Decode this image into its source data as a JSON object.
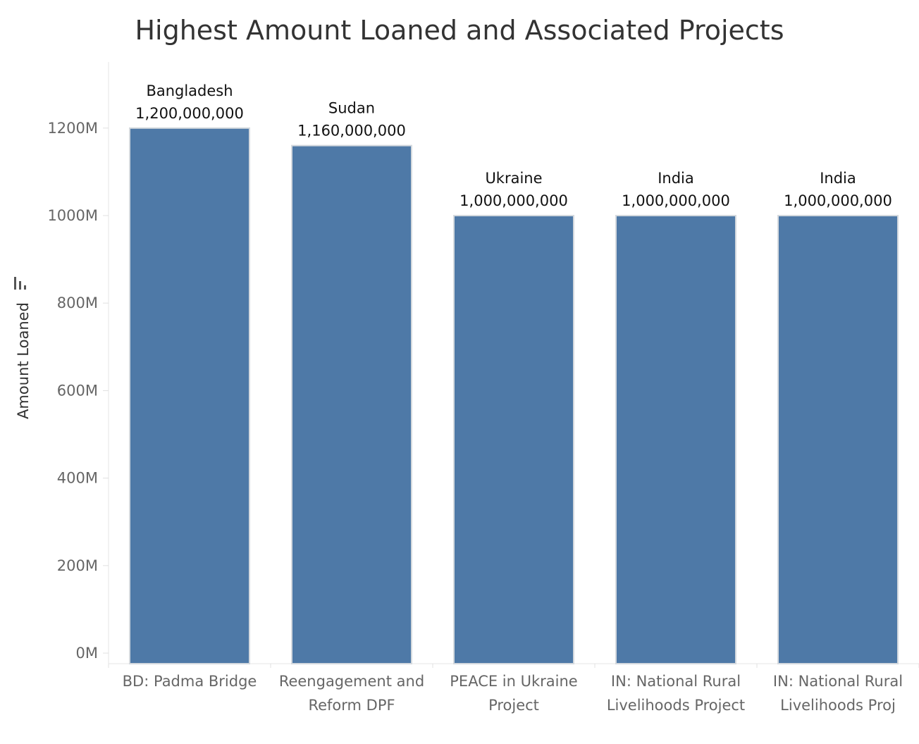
{
  "chart_data": {
    "type": "bar",
    "title": "Highest Amount Loaned and Associated Projects",
    "xlabel": "",
    "ylabel": "Amount Loaned",
    "ylim": [
      0,
      1330000000
    ],
    "yticks": [
      0,
      200000000,
      400000000,
      600000000,
      800000000,
      1000000000,
      1200000000
    ],
    "ytick_labels": [
      "0M",
      "200M",
      "400M",
      "600M",
      "800M",
      "1000M",
      "1200M"
    ],
    "grid": false,
    "legend": "none",
    "bar_color": "#4e79a7",
    "categories": [
      [
        "BD: Padma Bridge"
      ],
      [
        "Reengagement and",
        "Reform DPF"
      ],
      [
        "PEACE in Ukraine",
        "Project"
      ],
      [
        "IN: National Rural",
        "Livelihoods Project"
      ],
      [
        "IN: National Rural",
        "Livelihoods Proj"
      ]
    ],
    "countries": [
      "Bangladesh",
      "Sudan",
      "Ukraine",
      "India",
      "India"
    ],
    "values": [
      1200000000,
      1160000000,
      1000000000,
      1000000000,
      1000000000
    ],
    "value_labels": [
      "1,200,000,000",
      "1,160,000,000",
      "1,000,000,000",
      "1,000,000,000",
      "1,000,000,000"
    ]
  }
}
